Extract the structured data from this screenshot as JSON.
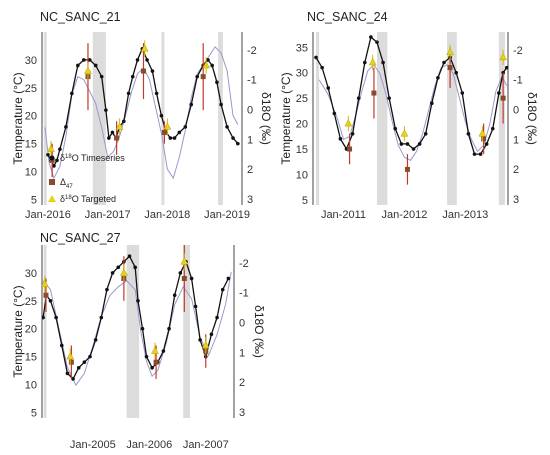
{
  "chart_data": [
    {
      "type": "line",
      "title": "NC_SANC_21",
      "ylabel_left": "Temperature (°C)",
      "ylabel_right": "δ18O (‰)",
      "ylim_left": [
        4,
        35
      ],
      "ylim_right_reversed": [
        3.2,
        -2.6
      ],
      "yticks_left": [
        "5",
        "10",
        "15",
        "20",
        "25",
        "30"
      ],
      "yticks_right": [
        "-2",
        "-1",
        "0",
        "1",
        "2",
        "3"
      ],
      "xticks": [
        "Jan-2016",
        "Jan-2017",
        "Jan-2018",
        "Jan-2019"
      ],
      "xlim": [
        2015.9,
        2019.25
      ],
      "shaded_periods": [
        [
          2015.93,
          2015.98
        ],
        [
          2016.75,
          2016.97
        ],
        [
          2017.9,
          2017.95
        ],
        [
          2018.85,
          2018.93
        ]
      ],
      "legend": {
        "placement": "inside-left",
        "entries": [
          {
            "label_base": "δ",
            "label_sup": "18",
            "label_tail": "O Timeseries",
            "marker": "black-dot"
          },
          {
            "label_base": "Δ",
            "label_sub": "47",
            "marker": "brown-square"
          },
          {
            "label_base": "δ",
            "label_sup": "18",
            "label_tail": "O Targeted",
            "marker": "yellow-triangle"
          }
        ]
      },
      "series": [
        {
          "role": "temperature_timeseries",
          "color": "#111111",
          "x": [
            2016.0,
            2016.05,
            2016.1,
            2016.15,
            2016.2,
            2016.3,
            2016.4,
            2016.5,
            2016.6,
            2016.7,
            2016.8,
            2016.9,
            2016.97,
            2017.02,
            2017.08,
            2017.14,
            2017.2,
            2017.27,
            2017.35,
            2017.42,
            2017.5,
            2017.58,
            2017.66,
            2017.75,
            2017.82,
            2017.9,
            2017.98,
            2018.05,
            2018.12,
            2018.2,
            2018.3,
            2018.4,
            2018.5,
            2018.6,
            2018.68,
            2018.75,
            2018.83,
            2018.9,
            2019.0,
            2019.1,
            2019.18
          ],
          "y": [
            13,
            12,
            11,
            12,
            14,
            18,
            24,
            29,
            30,
            30,
            29,
            27,
            21,
            16,
            17,
            16,
            18,
            19,
            24,
            27,
            30,
            32,
            30,
            28,
            24,
            20,
            17,
            16,
            16,
            17,
            18,
            22,
            27,
            29,
            30,
            29,
            26,
            22,
            18,
            16,
            15
          ]
        },
        {
          "role": "d18O_timeseries_right_axis",
          "color": "#9999cc",
          "x": [
            2015.95,
            2016.02,
            2016.1,
            2016.2,
            2016.3,
            2016.4,
            2016.5,
            2016.6,
            2016.7,
            2016.8,
            2016.9,
            2017.0,
            2017.1,
            2017.2,
            2017.3,
            2017.4,
            2017.5,
            2017.6,
            2017.7,
            2017.8,
            2017.9,
            2018.0,
            2018.1,
            2018.2,
            2018.3,
            2018.4,
            2018.5,
            2018.6,
            2018.7,
            2018.8,
            2018.9,
            2019.0,
            2019.1,
            2019.18
          ],
          "y": [
            0.6,
            1.8,
            2.3,
            1.9,
            0.9,
            -0.5,
            -1.1,
            -1.0,
            -0.6,
            -0.2,
            0.6,
            1.6,
            1.4,
            0.9,
            0.2,
            -0.6,
            -1.2,
            -1.4,
            -1.0,
            -0.1,
            0.8,
            2.0,
            2.3,
            1.6,
            0.7,
            -0.4,
            -1.2,
            -1.5,
            -1.8,
            -2.1,
            -1.9,
            -1.3,
            0.2,
            0.5
          ]
        },
        {
          "role": "d47_points",
          "color": "#8a4b2d",
          "x": [
            2016.07,
            2016.67,
            2017.15,
            2017.6,
            2017.95,
            2018.6
          ],
          "y": [
            12,
            27,
            16,
            28,
            17,
            27
          ],
          "yerr": [
            3,
            6,
            3,
            5,
            2,
            6
          ]
        },
        {
          "role": "d18O_targeted_points",
          "color": "#e6d21a",
          "x": [
            2016.05,
            2016.67,
            2017.2,
            2017.62,
            2018.0,
            2018.65
          ],
          "y": [
            14,
            28,
            18,
            32,
            18,
            29
          ],
          "yerr": [
            1.5,
            1.5,
            1.5,
            1.5,
            1.5,
            1.5
          ]
        }
      ]
    },
    {
      "type": "line",
      "title": "NC_SANC_24",
      "ylabel_left": "Temperature (°C)",
      "ylabel_right": "δ18O (‰)",
      "ylim_left": [
        4,
        38
      ],
      "ylim_right_reversed": [
        3.2,
        -2.6
      ],
      "yticks_left": [
        "5",
        "10",
        "15",
        "20",
        "25",
        "30",
        "35"
      ],
      "yticks_right": [
        "-2",
        "-1",
        "0",
        "1",
        "2",
        "3"
      ],
      "xticks": [
        "Jan-2011",
        "Jan-2012",
        "Jan-2013"
      ],
      "xlim": [
        2010.5,
        2013.7
      ],
      "shaded_periods": [
        [
          2010.55,
          2010.6
        ],
        [
          2011.55,
          2011.72
        ],
        [
          2012.7,
          2012.86
        ],
        [
          2013.55,
          2013.65
        ]
      ],
      "series": [
        {
          "role": "temperature_timeseries",
          "color": "#111111",
          "x": [
            2010.55,
            2010.65,
            2010.75,
            2010.85,
            2010.95,
            2011.05,
            2011.15,
            2011.25,
            2011.35,
            2011.45,
            2011.55,
            2011.65,
            2011.75,
            2011.85,
            2011.95,
            2012.05,
            2012.15,
            2012.25,
            2012.35,
            2012.45,
            2012.55,
            2012.65,
            2012.75,
            2012.85,
            2012.95,
            2013.05,
            2013.15,
            2013.25,
            2013.35,
            2013.45,
            2013.55,
            2013.62,
            2013.68
          ],
          "y": [
            33,
            31,
            27,
            22,
            17,
            15,
            18,
            25,
            32,
            37,
            36,
            32,
            25,
            19,
            16,
            16,
            15,
            16,
            18,
            24,
            29,
            32,
            33,
            30,
            26,
            18,
            14,
            14,
            16,
            19,
            26,
            30,
            31
          ]
        },
        {
          "role": "d18O_timeseries_right_axis",
          "color": "#9999cc",
          "x": [
            2010.6,
            2010.75,
            2010.9,
            2011.0,
            2011.1,
            2011.2,
            2011.3,
            2011.4,
            2011.5,
            2011.6,
            2011.7,
            2011.8,
            2011.9,
            2012.0,
            2012.1,
            2012.2,
            2012.3,
            2012.4,
            2012.5,
            2012.6,
            2012.7,
            2012.8,
            2012.9,
            2013.0,
            2013.1,
            2013.2,
            2013.3,
            2013.4,
            2013.5,
            2013.6,
            2013.68
          ],
          "y": [
            -1.0,
            -0.5,
            0.3,
            1.0,
            0.9,
            0.2,
            -0.6,
            -1.3,
            -1.5,
            -1.2,
            -0.5,
            0.4,
            1.2,
            1.6,
            1.7,
            1.4,
            0.8,
            0.0,
            -0.8,
            -1.4,
            -1.5,
            -1.2,
            -0.4,
            0.4,
            1.0,
            1.4,
            1.2,
            0.5,
            -0.6,
            -1.1,
            -0.8
          ]
        },
        {
          "role": "d47_points",
          "color": "#8a4b2d",
          "x": [
            2011.1,
            2011.5,
            2012.05,
            2012.75,
            2013.3,
            2013.62
          ],
          "y": [
            15,
            26,
            11,
            31,
            17,
            25
          ],
          "yerr": [
            3,
            5,
            3,
            4,
            3,
            5
          ]
        },
        {
          "role": "d18O_targeted_points",
          "color": "#e6d21a",
          "x": [
            2011.08,
            2011.48,
            2012.0,
            2012.75,
            2013.28,
            2013.62
          ],
          "y": [
            20,
            32,
            18,
            34,
            18,
            33
          ],
          "yerr": [
            1.5,
            1.5,
            1.5,
            1.5,
            1.5,
            1.5
          ]
        }
      ]
    },
    {
      "type": "line",
      "title": "NC_SANC_27",
      "ylabel_left": "Temperature (°C)",
      "ylabel_right": "δ18O (‰)",
      "ylim_left": [
        4,
        35
      ],
      "ylim_right_reversed": [
        3.2,
        -2.6
      ],
      "yticks_left": [
        "5",
        "10",
        "15",
        "20",
        "25",
        "30"
      ],
      "yticks_right": [
        "-2",
        "-1",
        "0",
        "1",
        "2",
        "3"
      ],
      "xticks": [
        "Jan-2005",
        "Jan-2006",
        "Jan-2007"
      ],
      "xlim": [
        2004.1,
        2007.5
      ],
      "shaded_periods": [
        [
          2004.13,
          2004.18
        ],
        [
          2005.6,
          2005.82
        ],
        [
          2006.6,
          2006.72
        ]
      ],
      "series": [
        {
          "role": "temperature_timeseries",
          "color": "#111111",
          "x": [
            2004.12,
            2004.18,
            2004.25,
            2004.35,
            2004.45,
            2004.55,
            2004.65,
            2004.75,
            2004.85,
            2004.95,
            2005.05,
            2005.15,
            2005.25,
            2005.35,
            2005.45,
            2005.55,
            2005.65,
            2005.75,
            2005.8,
            2005.88,
            2005.95,
            2006.05,
            2006.15,
            2006.25,
            2006.35,
            2006.45,
            2006.55,
            2006.65,
            2006.75,
            2006.82,
            2006.9,
            2007.0,
            2007.1,
            2007.2,
            2007.3,
            2007.4
          ],
          "y": [
            22,
            26,
            25,
            22,
            17,
            12,
            11,
            13,
            14,
            15,
            18,
            22,
            27,
            30,
            31,
            32,
            33,
            31,
            25,
            20,
            15,
            13,
            14,
            16,
            20,
            26,
            30,
            32,
            29,
            24,
            18,
            15,
            19,
            22,
            27,
            29
          ]
        },
        {
          "role": "d18O_timeseries_right_axis",
          "color": "#9999cc",
          "x": [
            2004.12,
            2004.25,
            2004.4,
            2004.55,
            2004.7,
            2004.85,
            2005.0,
            2005.15,
            2005.3,
            2005.45,
            2005.6,
            2005.75,
            2005.85,
            2005.95,
            2006.05,
            2006.15,
            2006.3,
            2006.45,
            2006.6,
            2006.75,
            2006.9,
            2007.05,
            2007.2,
            2007.35,
            2007.45
          ],
          "y": [
            -1.4,
            -1.1,
            0.2,
            1.5,
            2.1,
            1.7,
            0.8,
            -0.2,
            -0.9,
            -1.2,
            -1.4,
            -1.1,
            0.3,
            1.3,
            1.8,
            1.6,
            0.7,
            -0.6,
            -1.2,
            -0.8,
            0.5,
            1.1,
            0.4,
            -0.6,
            -1.7
          ]
        },
        {
          "role": "d47_points",
          "color": "#8a4b2d",
          "x": [
            2004.17,
            2004.62,
            2005.55,
            2006.12,
            2006.62,
            2007.0
          ],
          "y": [
            26,
            14,
            29,
            14,
            29,
            16
          ],
          "yerr": [
            3,
            3,
            4,
            3,
            6,
            3
          ]
        },
        {
          "role": "d18O_targeted_points",
          "color": "#e6d21a",
          "x": [
            2004.15,
            2004.6,
            2005.55,
            2006.1,
            2006.62,
            2007.0
          ],
          "y": [
            28,
            15,
            30,
            16,
            32,
            17
          ],
          "yerr": [
            1.5,
            1.5,
            1.5,
            1.5,
            1.5,
            1.5
          ]
        }
      ]
    }
  ]
}
